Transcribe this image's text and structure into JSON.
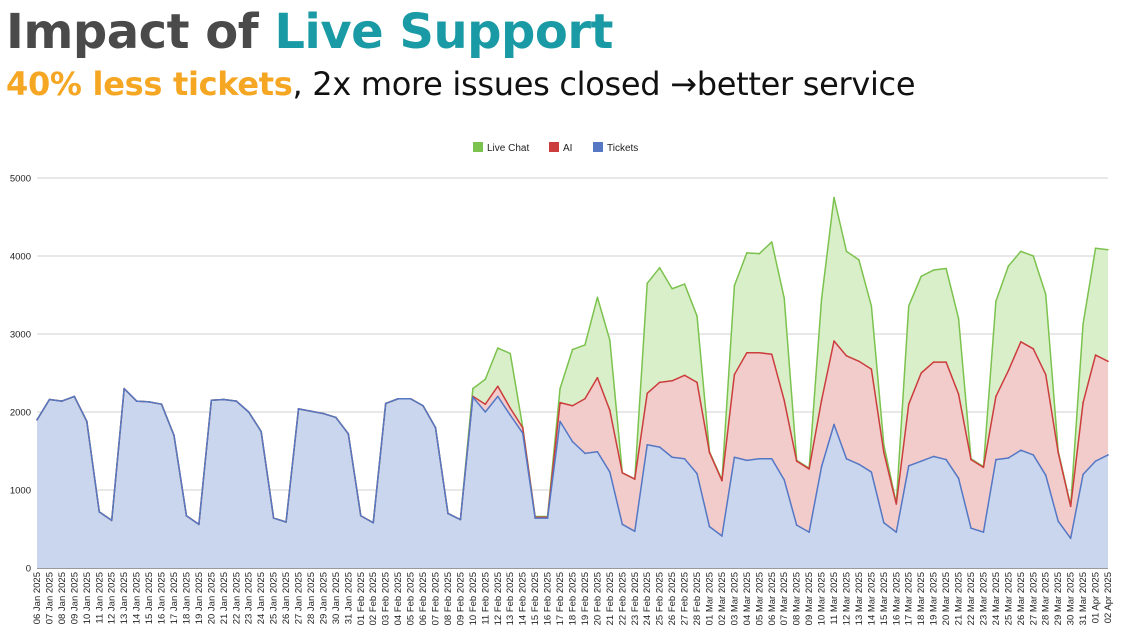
{
  "header": {
    "title_part1": "Impact of ",
    "title_part2": "Live Support",
    "subtitle_highlight": "40% less tickets",
    "subtitle_rest": ", 2x more issues closed →better service"
  },
  "colors": {
    "title_dark": "#4a4a4a",
    "title_accent": "#1a9aa4",
    "subtitle_accent": "#f5a623",
    "live_chat_line": "#7cc24e",
    "live_chat_fill": "#d9efc9",
    "ai_line": "#cc3d3d",
    "ai_fill": "#f2cccb",
    "tickets_line": "#5577c4",
    "tickets_fill": "#c9d6ed"
  },
  "chart_data": {
    "type": "area",
    "stacked": false,
    "legend_position": "top-center",
    "grid": true,
    "ylim": [
      0,
      5000
    ],
    "yticks": [
      0,
      1000,
      2000,
      3000,
      4000,
      5000
    ],
    "xlabel": "",
    "ylabel": "",
    "x": [
      "06 Jan 2025",
      "07 Jan 2025",
      "08 Jan 2025",
      "09 Jan 2025",
      "10 Jan 2025",
      "11 Jan 2025",
      "12 Jan 2025",
      "13 Jan 2025",
      "14 Jan 2025",
      "15 Jan 2025",
      "16 Jan 2025",
      "17 Jan 2025",
      "18 Jan 2025",
      "19 Jan 2025",
      "20 Jan 2025",
      "21 Jan 2025",
      "22 Jan 2025",
      "23 Jan 2025",
      "24 Jan 2025",
      "25 Jan 2025",
      "26 Jan 2025",
      "27 Jan 2025",
      "28 Jan 2025",
      "29 Jan 2025",
      "30 Jan 2025",
      "31 Jan 2025",
      "01 Feb 2025",
      "02 Feb 2025",
      "03 Feb 2025",
      "04 Feb 2025",
      "05 Feb 2025",
      "06 Feb 2025",
      "07 Feb 2025",
      "08 Feb 2025",
      "09 Feb 2025",
      "10 Feb 2025",
      "11 Feb 2025",
      "12 Feb 2025",
      "13 Feb 2025",
      "14 Feb 2025",
      "15 Feb 2025",
      "16 Feb 2025",
      "17 Feb 2025",
      "18 Feb 2025",
      "19 Feb 2025",
      "20 Feb 2025",
      "21 Feb 2025",
      "22 Feb 2025",
      "23 Feb 2025",
      "24 Feb 2025",
      "25 Feb 2025",
      "26 Feb 2025",
      "27 Feb 2025",
      "28 Feb 2025",
      "01 Mar 2025",
      "02 Mar 2025",
      "03 Mar 2025",
      "04 Mar 2025",
      "05 Mar 2025",
      "06 Mar 2025",
      "07 Mar 2025",
      "08 Mar 2025",
      "09 Mar 2025",
      "10 Mar 2025",
      "11 Mar 2025",
      "12 Mar 2025",
      "13 Mar 2025",
      "14 Mar 2025",
      "15 Mar 2025",
      "16 Mar 2025",
      "17 Mar 2025",
      "18 Mar 2025",
      "19 Mar 2025",
      "20 Mar 2025",
      "21 Mar 2025",
      "22 Mar 2025",
      "23 Mar 2025",
      "24 Mar 2025",
      "25 Mar 2025",
      "26 Mar 2025",
      "27 Mar 2025",
      "28 Mar 2025",
      "29 Mar 2025",
      "30 Mar 2025",
      "31 Mar 2025",
      "01 Apr 2025",
      "02 Apr 2025"
    ],
    "series": [
      {
        "name": "Live Chat",
        "color": "#7cc24e",
        "values": [
          1900,
          2160,
          2140,
          2200,
          1880,
          720,
          610,
          2300,
          2140,
          2130,
          2100,
          1700,
          670,
          560,
          2150,
          2160,
          2140,
          2000,
          1750,
          640,
          590,
          2040,
          2010,
          1980,
          1930,
          1720,
          670,
          580,
          2110,
          2170,
          2170,
          2080,
          1800,
          700,
          620,
          2300,
          2420,
          2820,
          2750,
          1810,
          660,
          660,
          2300,
          2800,
          2860,
          3470,
          2920,
          1220,
          1140,
          3650,
          3850,
          3580,
          3640,
          3230,
          1490,
          1130,
          3620,
          4040,
          4030,
          4180,
          3460,
          1380,
          1280,
          3450,
          4750,
          4060,
          3950,
          3360,
          1580,
          830,
          3360,
          3740,
          3820,
          3840,
          3200,
          1400,
          1300,
          3420,
          3870,
          4060,
          4000,
          3510,
          1500,
          800,
          3130,
          4100,
          4080
        ]
      },
      {
        "name": "AI",
        "color": "#cc3d3d",
        "values": [
          1900,
          2160,
          2140,
          2200,
          1880,
          720,
          610,
          2300,
          2140,
          2130,
          2100,
          1700,
          670,
          560,
          2150,
          2160,
          2140,
          2000,
          1750,
          640,
          590,
          2040,
          2010,
          1980,
          1930,
          1720,
          670,
          580,
          2110,
          2170,
          2170,
          2080,
          1800,
          700,
          620,
          2200,
          2100,
          2330,
          2050,
          1800,
          650,
          650,
          2120,
          2080,
          2170,
          2440,
          2020,
          1220,
          1140,
          2240,
          2380,
          2400,
          2470,
          2380,
          1480,
          1120,
          2480,
          2760,
          2760,
          2740,
          2150,
          1370,
          1270,
          2150,
          2910,
          2720,
          2650,
          2550,
          1480,
          820,
          2100,
          2500,
          2640,
          2640,
          2230,
          1390,
          1290,
          2200,
          2530,
          2900,
          2810,
          2480,
          1480,
          790,
          2120,
          2730,
          2650
        ]
      },
      {
        "name": "Tickets",
        "color": "#5577c4",
        "values": [
          1900,
          2160,
          2140,
          2200,
          1880,
          720,
          610,
          2300,
          2140,
          2130,
          2100,
          1700,
          670,
          560,
          2150,
          2160,
          2140,
          2000,
          1750,
          640,
          590,
          2040,
          2010,
          1980,
          1930,
          1720,
          670,
          580,
          2110,
          2170,
          2170,
          2080,
          1800,
          700,
          620,
          2190,
          2000,
          2200,
          1960,
          1730,
          640,
          640,
          1880,
          1620,
          1470,
          1490,
          1230,
          560,
          470,
          1580,
          1550,
          1420,
          1400,
          1210,
          530,
          410,
          1420,
          1380,
          1400,
          1400,
          1130,
          550,
          460,
          1300,
          1840,
          1400,
          1330,
          1230,
          580,
          460,
          1310,
          1370,
          1430,
          1390,
          1150,
          510,
          460,
          1390,
          1410,
          1510,
          1450,
          1190,
          600,
          380,
          1200,
          1370,
          1450
        ]
      }
    ]
  }
}
